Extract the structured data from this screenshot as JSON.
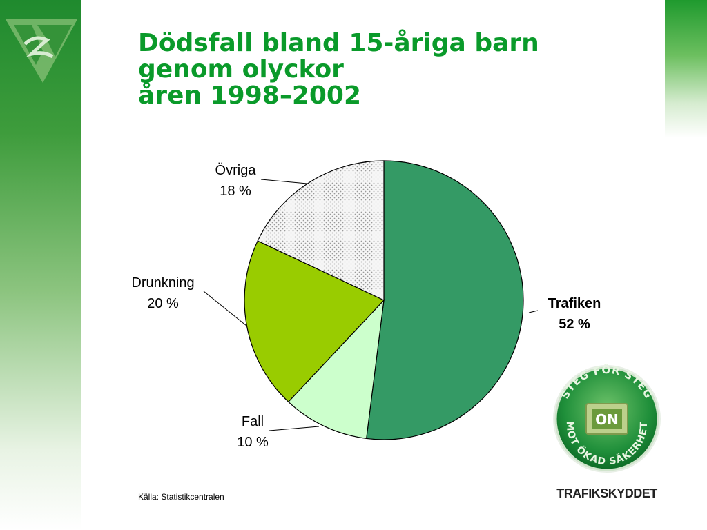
{
  "slide": {
    "title_lines": [
      "Dödsfall bland 15-åriga barn",
      "genom olyckor",
      "åren 1998–2002"
    ],
    "source": "Källa: Statistikcentralen"
  },
  "badge": {
    "top_text": "STEG FÖR STEG",
    "bottom_text": "MOT ÖKAD SÄKERHET",
    "center": "ON",
    "brand": "TRAFIKSKYDDET"
  },
  "chart_data": {
    "type": "pie",
    "title": "",
    "slices": [
      {
        "label": "Trafiken",
        "value": 52,
        "value_label": "52 %",
        "color": "#349a65",
        "pattern": "none",
        "bold": true
      },
      {
        "label": "Fall",
        "value": 10,
        "value_label": "10 %",
        "color": "#ccffcc",
        "pattern": "none",
        "bold": false
      },
      {
        "label": "Drunkning",
        "value": 20,
        "value_label": "20 %",
        "color": "#99cc00",
        "pattern": "none",
        "bold": false
      },
      {
        "label": "Övriga",
        "value": 18,
        "value_label": "18 %",
        "color": "#f4f4f4",
        "pattern": "dots",
        "bold": false
      }
    ]
  }
}
